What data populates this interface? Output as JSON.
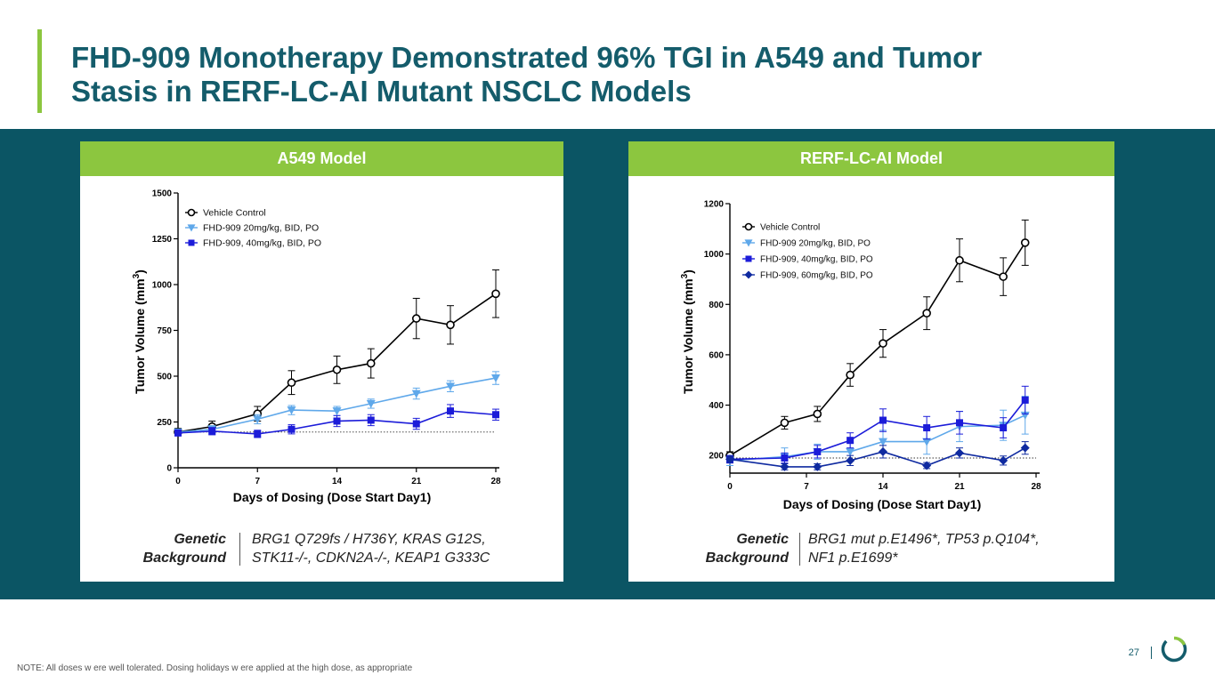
{
  "slide": {
    "title_line1": "FHD-909 Monotherapy Demonstrated 96% TGI in A549 and Tumor",
    "title_line2": "Stasis in RERF-LC-AI Mutant NSCLC Models",
    "page_number": "27",
    "note": "NOTE:  All doses w ere well tolerated. Dosing holidays w ere applied at the high dose, as appropriate",
    "colors": {
      "title": "#145c6b",
      "accent_green": "#8cc63f",
      "band": "#0b5564"
    }
  },
  "panels": [
    {
      "heading": "A549 Model",
      "genetic_label_1": "Genetic",
      "genetic_label_2": "Background",
      "genetic_line_1": "BRG1 Q729fs / H736Y, KRAS G12S,",
      "genetic_line_2": "STK11-/-, CDKN2A-/-, KEAP1 G333C"
    },
    {
      "heading": "RERF-LC-AI Model",
      "genetic_label_1": "Genetic",
      "genetic_label_2": "Background",
      "genetic_line_1": "BRG1 mut p.E1496*, TP53 p.Q104*,",
      "genetic_line_2": "NF1 p.E1699*"
    }
  ],
  "chart_data": [
    {
      "type": "line",
      "xlabel": "Days of Dosing (Dose Start Day1)",
      "ylabel": "Tumor Volume (mm",
      "ylabel_sup": "3",
      "ylabel_close": ")",
      "xlim": [
        0,
        28
      ],
      "ylim": [
        0,
        1500
      ],
      "xticks": [
        0,
        7,
        14,
        21,
        28
      ],
      "yticks": [
        0,
        250,
        500,
        750,
        1000,
        1250,
        1500
      ],
      "baseline": 195,
      "legend_position": "top-left",
      "series": [
        {
          "name": "Vehicle Control",
          "color": "#000000",
          "marker": "open-circle",
          "x": [
            0,
            3,
            7,
            10,
            14,
            17,
            21,
            24,
            28
          ],
          "y": [
            195,
            225,
            295,
            465,
            535,
            570,
            815,
            780,
            950
          ],
          "err": [
            20,
            30,
            40,
            65,
            75,
            80,
            110,
            105,
            130
          ]
        },
        {
          "name": "FHD-909 20mg/kg, BID, PO",
          "color": "#5fa8ea",
          "marker": "triangle-down",
          "x": [
            0,
            3,
            7,
            10,
            14,
            17,
            21,
            24,
            28
          ],
          "y": [
            195,
            210,
            265,
            315,
            310,
            350,
            405,
            445,
            490
          ],
          "err": [
            15,
            20,
            25,
            25,
            25,
            25,
            30,
            30,
            35
          ]
        },
        {
          "name": "FHD-909, 40mg/kg, BID, PO",
          "color": "#1c1cd9",
          "marker": "square",
          "x": [
            0,
            3,
            7,
            10,
            14,
            17,
            21,
            24,
            28
          ],
          "y": [
            190,
            200,
            185,
            210,
            255,
            260,
            240,
            310,
            290
          ],
          "err": [
            15,
            20,
            20,
            25,
            30,
            30,
            30,
            35,
            30
          ]
        }
      ]
    },
    {
      "type": "line",
      "xlabel": "Days of Dosing (Dose Start Day1)",
      "ylabel": "Tumor Volume (mm",
      "ylabel_sup": "3",
      "ylabel_close": ")",
      "xlim": [
        0,
        28
      ],
      "ylim": [
        130,
        1200
      ],
      "xticks": [
        0,
        7,
        14,
        21,
        28
      ],
      "yticks": [
        200,
        400,
        600,
        800,
        1000,
        1200
      ],
      "baseline": 190,
      "legend_position": "top-left",
      "series": [
        {
          "name": "Vehicle Control",
          "color": "#000000",
          "marker": "open-circle",
          "x": [
            0,
            5,
            8,
            11,
            14,
            18,
            21,
            25,
            27
          ],
          "y": [
            200,
            330,
            365,
            520,
            645,
            765,
            975,
            910,
            1045
          ],
          "err": [
            15,
            25,
            30,
            45,
            55,
            65,
            85,
            75,
            90
          ]
        },
        {
          "name": "FHD-909 20mg/kg, BID, PO",
          "color": "#5fa8ea",
          "marker": "triangle-down",
          "x": [
            0,
            5,
            8,
            11,
            14,
            18,
            21,
            25,
            27
          ],
          "y": [
            180,
            195,
            215,
            215,
            255,
            255,
            315,
            320,
            360
          ],
          "err": [
            20,
            35,
            30,
            35,
            45,
            50,
            60,
            60,
            75
          ]
        },
        {
          "name": "FHD-909, 40mg/kg, BID, PO",
          "color": "#1c1cd9",
          "marker": "square",
          "x": [
            0,
            5,
            8,
            11,
            14,
            18,
            21,
            25,
            27
          ],
          "y": [
            185,
            190,
            215,
            260,
            340,
            310,
            330,
            310,
            420
          ],
          "err": [
            15,
            20,
            25,
            30,
            45,
            45,
            45,
            40,
            55
          ]
        },
        {
          "name": "FHD-909, 60mg/kg, BID, PO",
          "color": "#0f2aa0",
          "marker": "diamond",
          "x": [
            0,
            5,
            8,
            11,
            14,
            18,
            21,
            25,
            27
          ],
          "y": [
            185,
            155,
            155,
            180,
            215,
            160,
            210,
            180,
            230
          ],
          "err": [
            12,
            12,
            12,
            20,
            25,
            12,
            20,
            18,
            25
          ]
        }
      ]
    }
  ]
}
